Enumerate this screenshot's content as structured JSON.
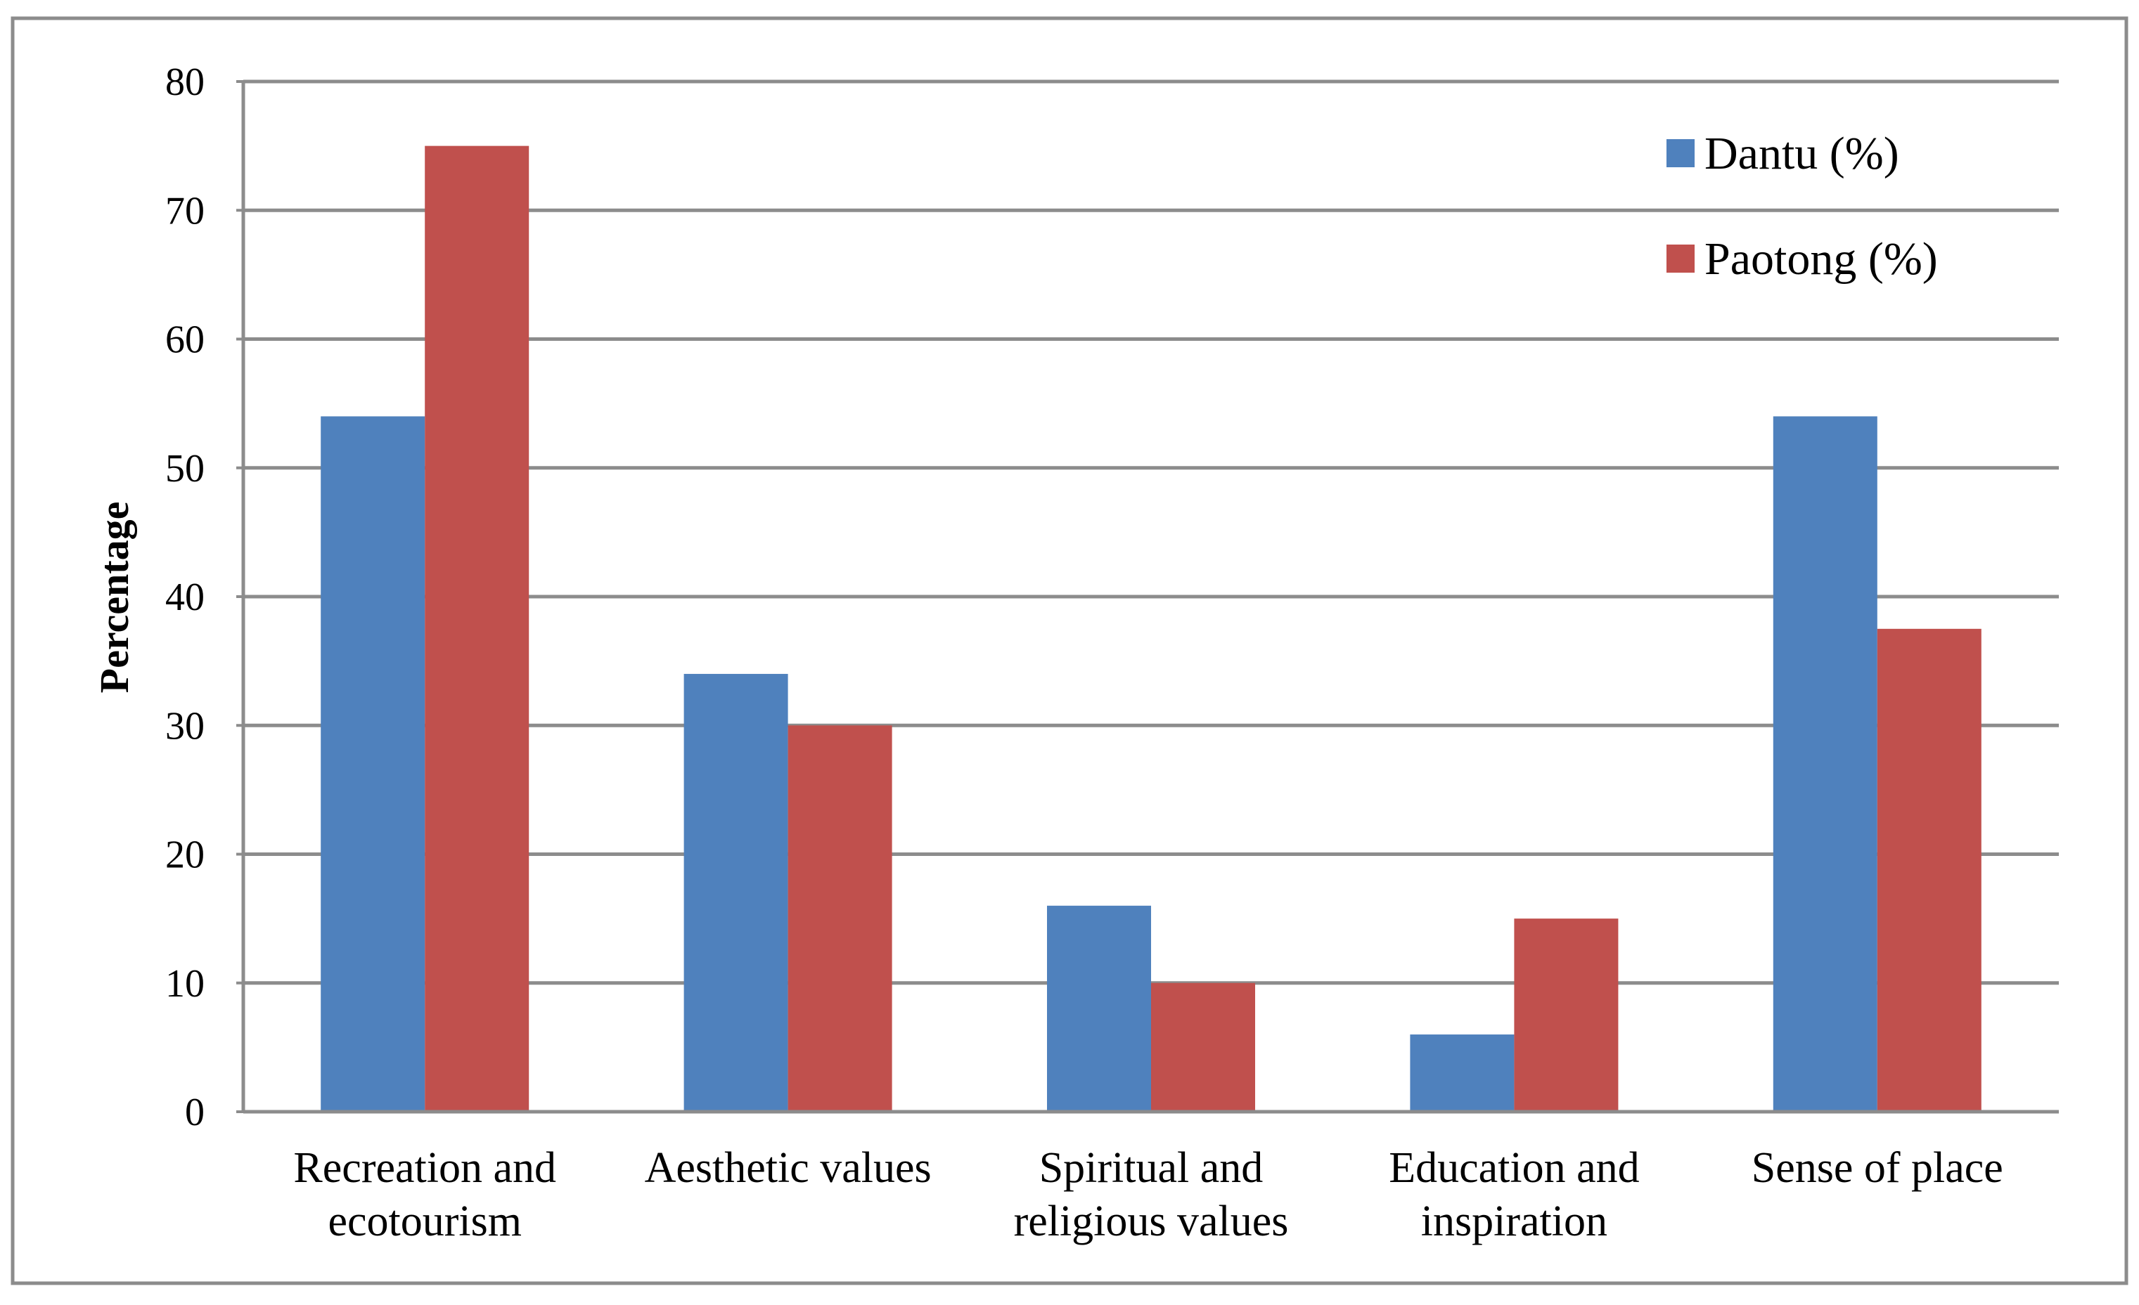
{
  "chart_data": {
    "type": "bar",
    "title": "",
    "xlabel": "",
    "ylabel": "Percentage",
    "ylim": [
      0,
      80
    ],
    "yticks": [
      0,
      10,
      20,
      30,
      40,
      50,
      60,
      70,
      80
    ],
    "ytick_labels": [
      "0",
      "10",
      "20",
      "30",
      "40",
      "50",
      "60",
      "70",
      "80"
    ],
    "grid": true,
    "legend_position": "top-right",
    "categories": [
      [
        "Recreation and",
        "ecotourism"
      ],
      [
        "Aesthetic values"
      ],
      [
        "Spiritual and",
        "religious values"
      ],
      [
        "Education and",
        "inspiration"
      ],
      [
        "Sense of place"
      ]
    ],
    "series": [
      {
        "name": "Dantu (%)",
        "color": "#4F81BD",
        "values": [
          54,
          34,
          16,
          6,
          54
        ]
      },
      {
        "name": "Paotong (%)",
        "color": "#C0504D",
        "values": [
          75,
          30,
          10,
          15,
          37.5
        ]
      }
    ],
    "colors": {
      "gridline": "#8C8C8C",
      "frame": "#8C8C8C",
      "axis": "#8C8C8C"
    }
  }
}
